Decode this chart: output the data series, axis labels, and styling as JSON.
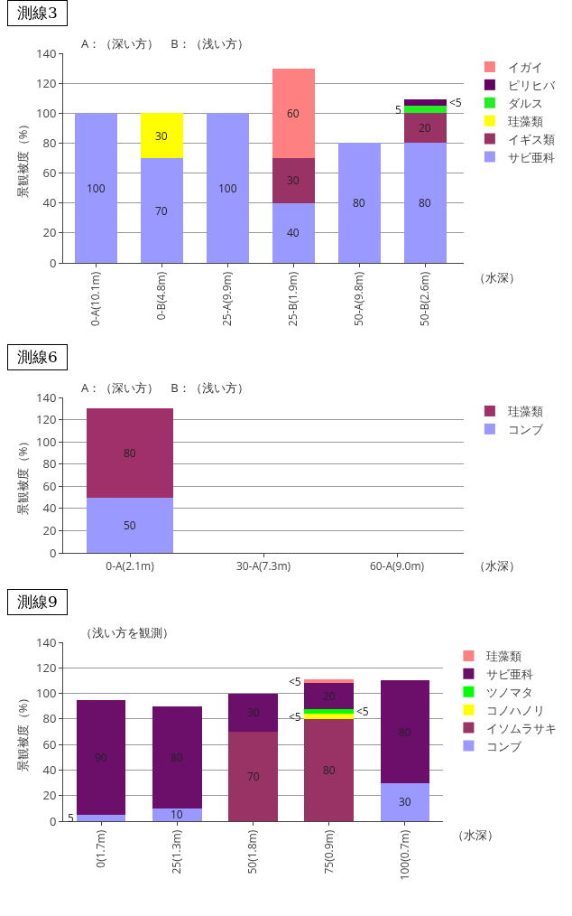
{
  "chart_data": [
    {
      "type": "bar",
      "title": "測線3",
      "ylabel": "景観被度（%）",
      "stacked": true,
      "grid": "y",
      "legend": "right",
      "annotations": [
        "A：（深い方）　B：（浅い方）",
        "（水深）"
      ],
      "categories": [
        "0-A(10.1m)",
        "0-B(4.8m)",
        "25-A(9.9m)",
        "25-B(1.9m)",
        "50-A(9.8m)",
        "50-B(2.6m)"
      ],
      "ylim": [
        0,
        140
      ],
      "yticks": [
        0,
        20,
        40,
        60,
        80,
        100,
        120,
        140
      ],
      "series": [
        {
          "name": "サビ亜科",
          "color": "#9999ff",
          "values": [
            100,
            70,
            100,
            40,
            80,
            80
          ],
          "value_labels": [
            "100",
            "70",
            "100",
            "40",
            "80",
            "80"
          ]
        },
        {
          "name": "イギス類",
          "color": "#993366",
          "values": [
            null,
            null,
            null,
            30,
            null,
            20
          ],
          "value_labels": [
            null,
            null,
            null,
            "30",
            null,
            "20"
          ]
        },
        {
          "name": "珪藻類",
          "color": "#ffff00",
          "values": [
            null,
            30,
            null,
            null,
            null,
            null
          ],
          "value_labels": [
            null,
            "30",
            null,
            null,
            null,
            null
          ]
        },
        {
          "name": "ダルス",
          "color": "#22ee22",
          "values": [
            null,
            null,
            null,
            null,
            null,
            5
          ],
          "value_labels": [
            null,
            null,
            null,
            null,
            null,
            "5"
          ]
        },
        {
          "name": "ピリヒバ",
          "color": "#660066",
          "values": [
            null,
            null,
            null,
            null,
            null,
            4
          ],
          "value_labels": [
            null,
            null,
            null,
            null,
            null,
            "<5"
          ]
        },
        {
          "name": "イガイ",
          "color": "#ff8080",
          "values": [
            null,
            null,
            null,
            60,
            null,
            null
          ],
          "value_labels": [
            null,
            null,
            null,
            "60",
            null,
            null
          ]
        }
      ]
    },
    {
      "type": "bar",
      "title": "測線6",
      "ylabel": "景観被度（%）",
      "stacked": true,
      "grid": "y",
      "legend": "right",
      "annotations": [
        "A：（深い方）　B：（浅い方）",
        "（水深）"
      ],
      "categories": [
        "0-A(2.1m)",
        "30-A(7.3m)",
        "60-A(9.0m)"
      ],
      "ylim": [
        0,
        140
      ],
      "yticks": [
        0,
        20,
        40,
        60,
        80,
        100,
        120,
        140
      ],
      "series": [
        {
          "name": "コンブ",
          "color": "#9999ff",
          "values": [
            50,
            null,
            null
          ],
          "value_labels": [
            "50",
            null,
            null
          ]
        },
        {
          "name": "珪藻類",
          "color": "#a0306a",
          "values": [
            80,
            null,
            null
          ],
          "value_labels": [
            "80",
            null,
            null
          ]
        }
      ]
    },
    {
      "type": "bar",
      "title": "測線9",
      "ylabel": "景観被度（%）",
      "stacked": true,
      "grid": "y",
      "legend": "right",
      "annotations": [
        "（浅い方を観測）",
        "（水深）"
      ],
      "categories": [
        "0(1.7m)",
        "25(1.3m)",
        "50(1.8m)",
        "75(0.9m)",
        "100(0.7m)"
      ],
      "ylim": [
        0,
        140
      ],
      "yticks": [
        0,
        20,
        40,
        60,
        80,
        100,
        120,
        140
      ],
      "series": [
        {
          "name": "コンブ",
          "color": "#9999ff",
          "values": [
            5,
            10,
            null,
            null,
            30
          ],
          "value_labels": [
            "5",
            "10",
            null,
            null,
            "30"
          ]
        },
        {
          "name": "イソムラサキ",
          "color": "#993366",
          "values": [
            null,
            null,
            70,
            80,
            null
          ],
          "value_labels": [
            null,
            null,
            "70",
            "80",
            null
          ]
        },
        {
          "name": "コノハノリ",
          "color": "#ffff00",
          "values": [
            null,
            null,
            null,
            4,
            null
          ],
          "value_labels": [
            null,
            null,
            null,
            "<5",
            null
          ]
        },
        {
          "name": "ツノマタ",
          "color": "#00ff00",
          "values": [
            null,
            null,
            null,
            4,
            null
          ],
          "value_labels": [
            null,
            null,
            null,
            "<5",
            null
          ]
        },
        {
          "name": "サビ亜科",
          "color": "#6b0f6b",
          "values": [
            90,
            80,
            30,
            20,
            80
          ],
          "value_labels": [
            "90",
            "80",
            "30",
            "20",
            "80"
          ]
        },
        {
          "name": "珪藻類",
          "color": "#ff8080",
          "values": [
            null,
            null,
            null,
            3,
            null
          ],
          "value_labels": [
            null,
            null,
            null,
            "<5",
            null
          ]
        }
      ]
    }
  ]
}
